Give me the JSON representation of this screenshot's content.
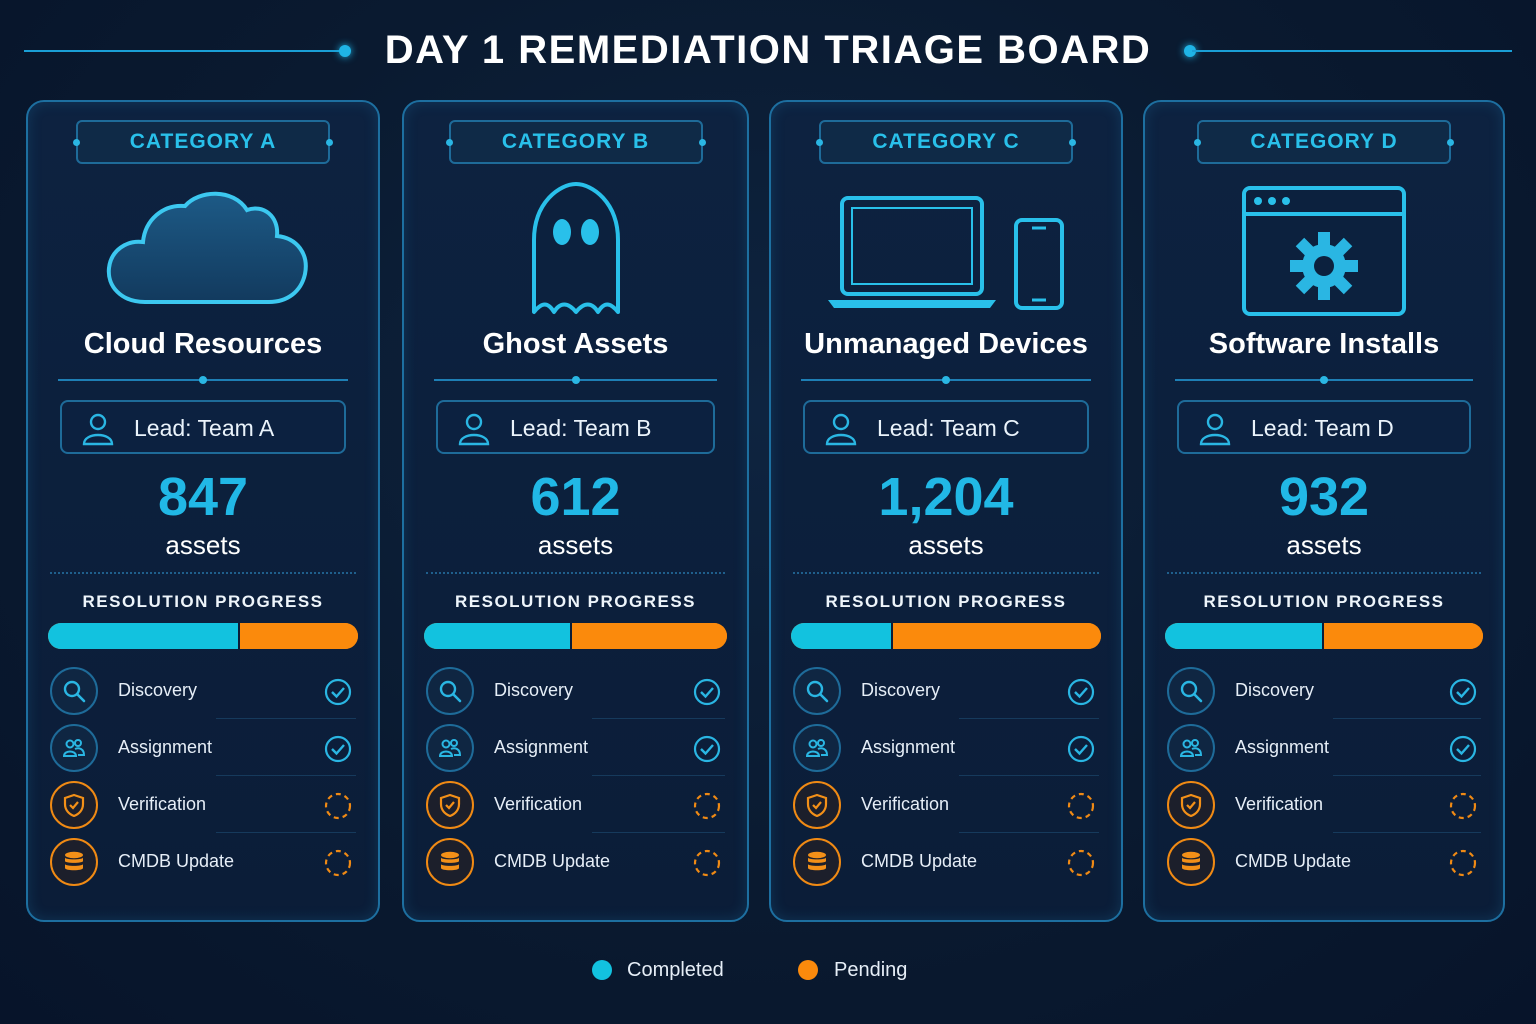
{
  "header": {
    "title": "DAY 1 REMEDIATION TRIAGE BOARD"
  },
  "colors": {
    "accent": "#21b8e6",
    "completed": "#12c2df",
    "pending": "#fb8a0c",
    "background": "#0a1a30"
  },
  "categories": [
    {
      "badge": "CATEGORY A",
      "name": "Cloud Resources",
      "icon": "cloud-icon",
      "lead": "Lead: Team A",
      "count": "847",
      "unit": "assets",
      "progress_label": "RESOLUTION PROGRESS",
      "completed_fraction": 0.62,
      "steps": [
        {
          "label": "Discovery",
          "icon": "search-icon",
          "status": "completed"
        },
        {
          "label": "Assignment",
          "icon": "users-icon",
          "status": "completed"
        },
        {
          "label": "Verification",
          "icon": "shield-icon",
          "status": "pending"
        },
        {
          "label": "CMDB Update",
          "icon": "database-icon",
          "status": "pending"
        }
      ]
    },
    {
      "badge": "CATEGORY B",
      "name": "Ghost Assets",
      "icon": "ghost-icon",
      "lead": "Lead: Team B",
      "count": "612",
      "unit": "assets",
      "progress_label": "RESOLUTION PROGRESS",
      "completed_fraction": 0.49,
      "steps": [
        {
          "label": "Discovery",
          "icon": "search-icon",
          "status": "completed"
        },
        {
          "label": "Assignment",
          "icon": "users-icon",
          "status": "completed"
        },
        {
          "label": "Verification",
          "icon": "shield-icon",
          "status": "pending"
        },
        {
          "label": "CMDB Update",
          "icon": "database-icon",
          "status": "pending"
        }
      ]
    },
    {
      "badge": "CATEGORY C",
      "name": "Unmanaged Devices",
      "icon": "laptop-phone-icon",
      "lead": "Lead: Team C",
      "count": "1,204",
      "unit": "assets",
      "progress_label": "RESOLUTION PROGRESS",
      "completed_fraction": 0.33,
      "steps": [
        {
          "label": "Discovery",
          "icon": "search-icon",
          "status": "completed"
        },
        {
          "label": "Assignment",
          "icon": "users-icon",
          "status": "completed"
        },
        {
          "label": "Verification",
          "icon": "shield-icon",
          "status": "pending"
        },
        {
          "label": "CMDB Update",
          "icon": "database-icon",
          "status": "pending"
        }
      ]
    },
    {
      "badge": "CATEGORY D",
      "name": "Software Installs",
      "icon": "app-settings-icon",
      "lead": "Lead: Team D",
      "count": "932",
      "unit": "assets",
      "progress_label": "RESOLUTION PROGRESS",
      "completed_fraction": 0.5,
      "steps": [
        {
          "label": "Discovery",
          "icon": "search-icon",
          "status": "completed"
        },
        {
          "label": "Assignment",
          "icon": "users-icon",
          "status": "completed"
        },
        {
          "label": "Verification",
          "icon": "shield-icon",
          "status": "pending"
        },
        {
          "label": "CMDB Update",
          "icon": "database-icon",
          "status": "pending"
        }
      ]
    }
  ],
  "legend": {
    "completed": "Completed",
    "pending": "Pending"
  }
}
